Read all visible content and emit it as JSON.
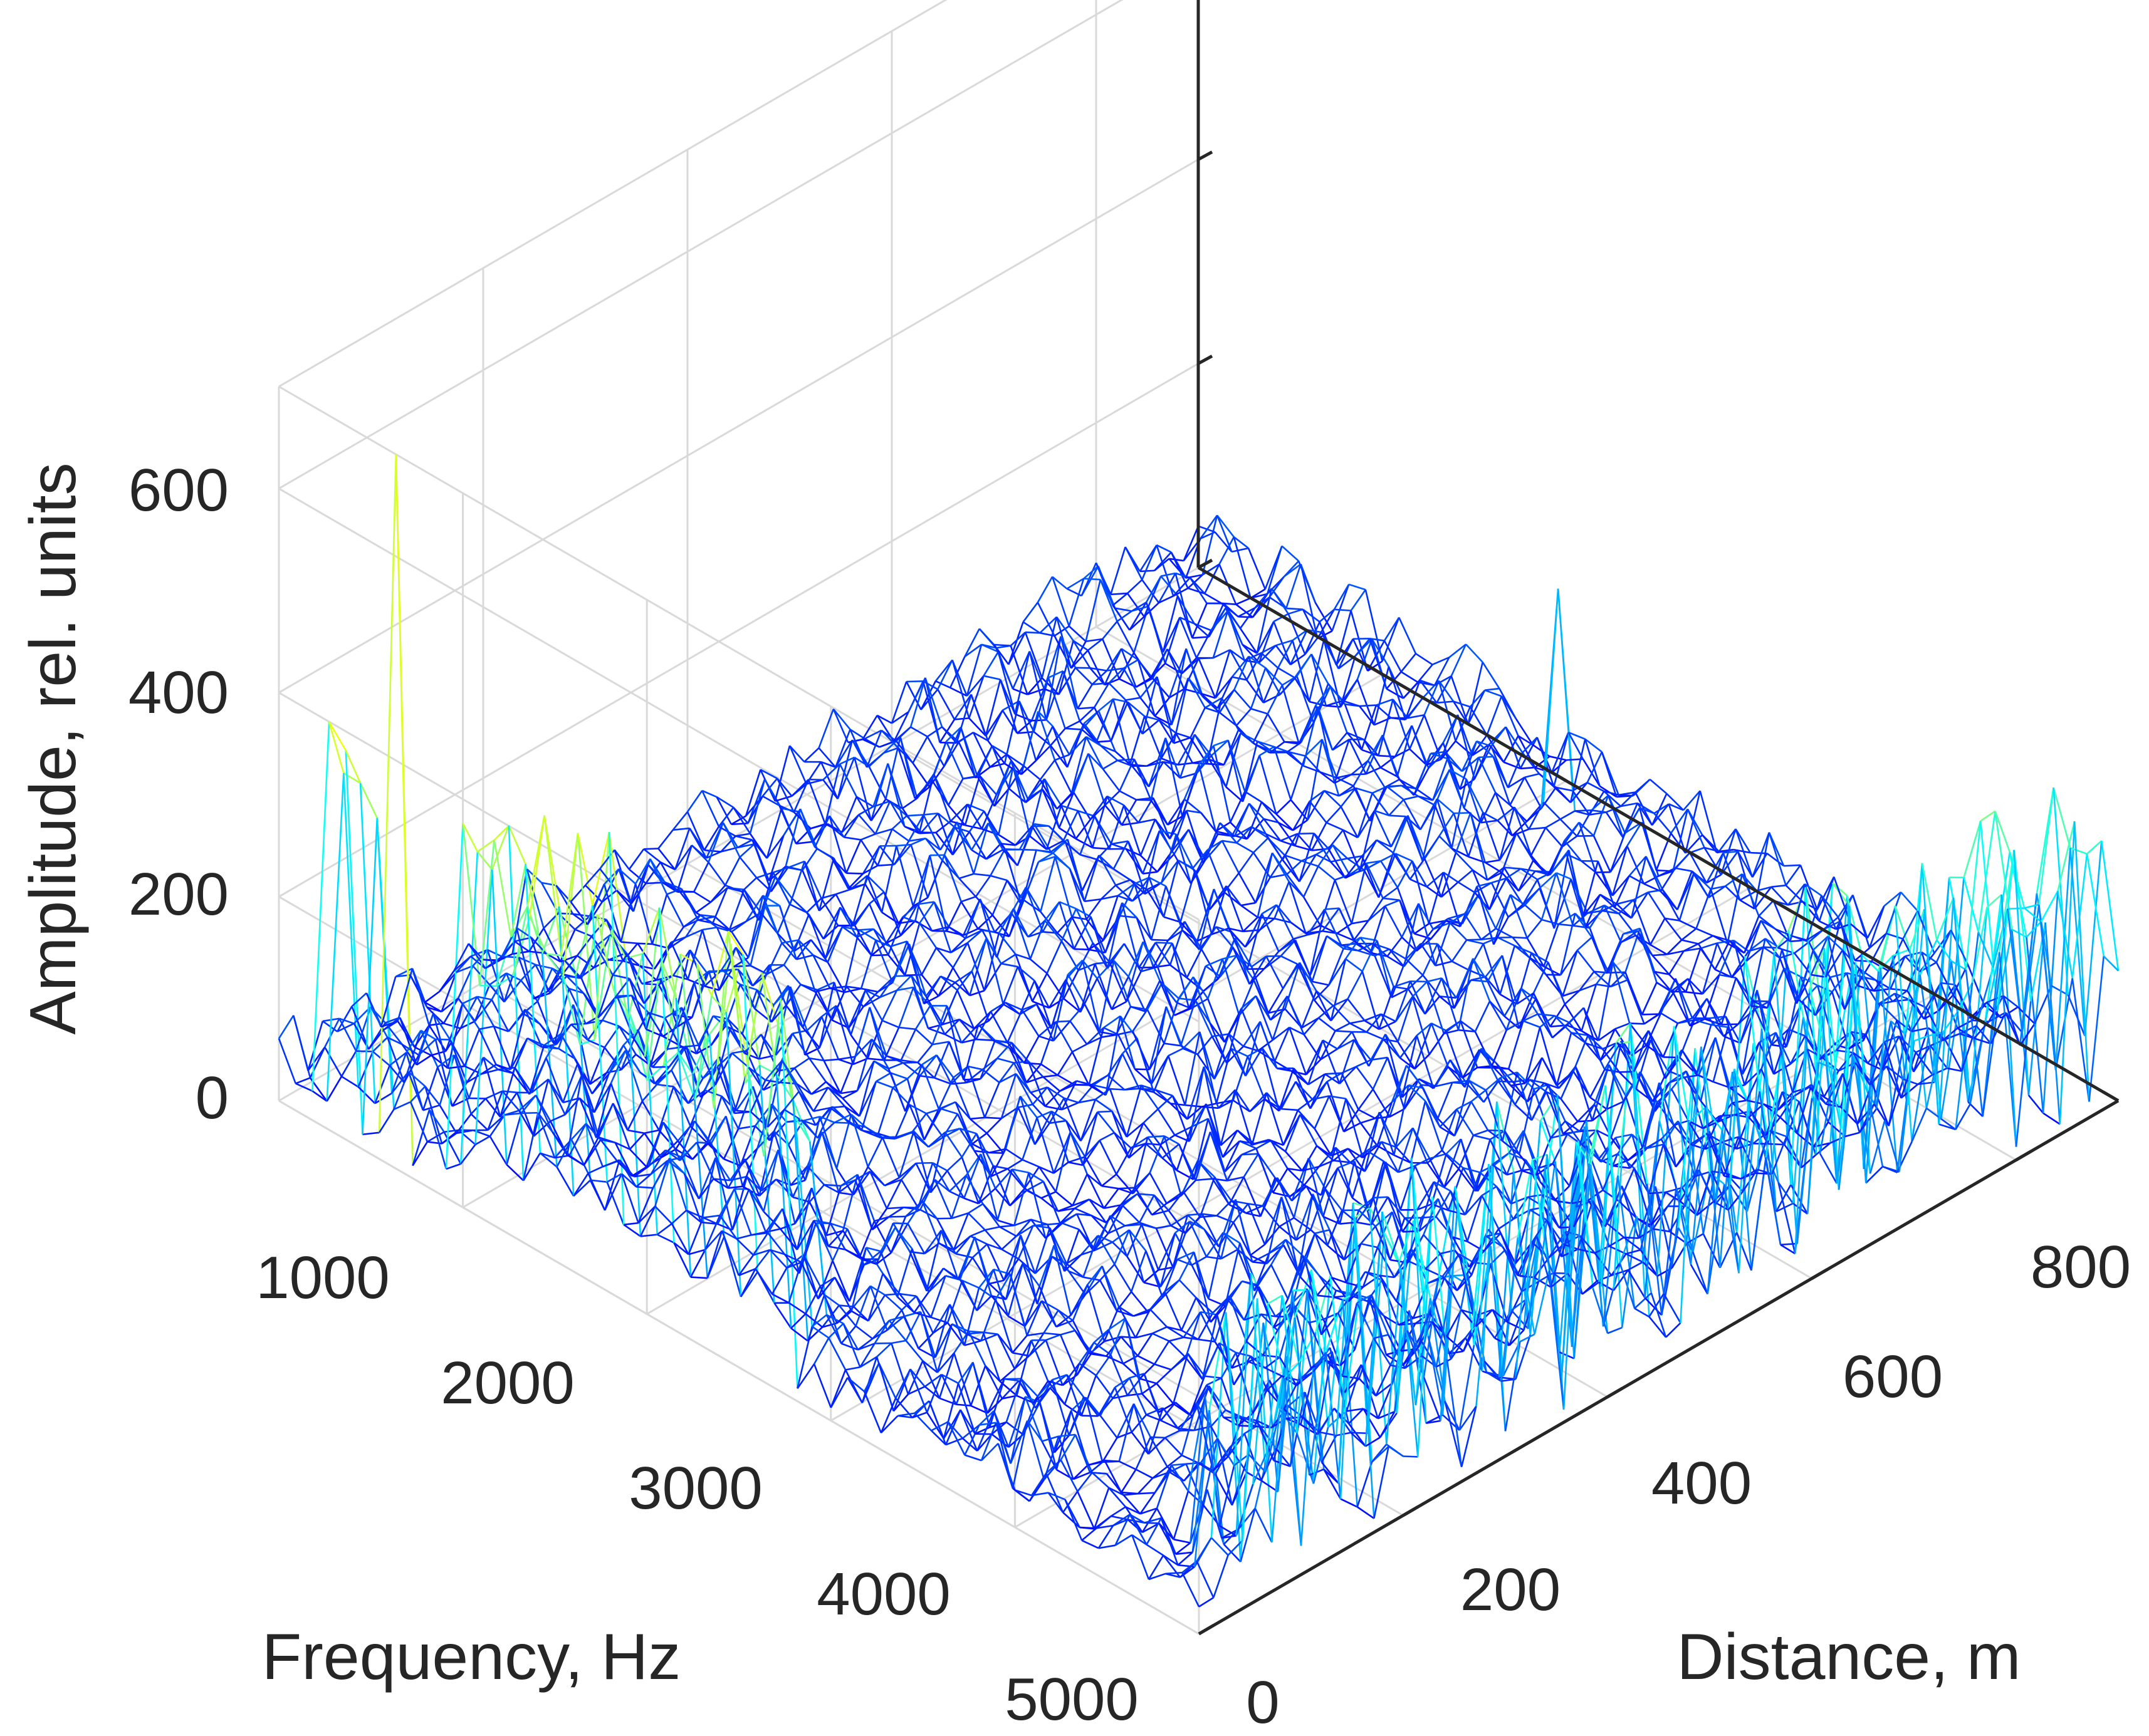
{
  "chart_data": {
    "type": "surface-mesh",
    "colormap": "jet",
    "title": "",
    "xlabel": "Frequency, Hz",
    "ylabel": "Distance, m",
    "zlabel": "Amplitude, rel. units",
    "xlim": [
      0,
      5000
    ],
    "ylim": [
      0,
      900
    ],
    "zlim": [
      0,
      700
    ],
    "xticks": [
      1000,
      2000,
      3000,
      4000,
      5000
    ],
    "yticks": [
      0,
      200,
      400,
      600,
      800
    ],
    "zticks": [
      0,
      200,
      400,
      600
    ],
    "xtick_labels": [
      "1000",
      "2000",
      "3000",
      "4000",
      "5000"
    ],
    "ytick_labels": [
      "0",
      "200",
      "400",
      "600",
      "800"
    ],
    "ztick_labels": [
      "0",
      "200",
      "400",
      "600"
    ],
    "background_amplitude": [
      10,
      90
    ],
    "features": [
      {
        "name": "peak",
        "frequency": 600,
        "distance": 0,
        "amplitude": 700
      },
      {
        "name": "ridge",
        "frequency": [
          1000,
          2700
        ],
        "distance": [
          0,
          30
        ],
        "amplitude": [
          220,
          420
        ]
      },
      {
        "name": "spike-row",
        "frequency": [
          100,
          500
        ],
        "distance": [
          0,
          20
        ],
        "amplitude": [
          300,
          410
        ]
      },
      {
        "name": "spike-row",
        "frequency": [
          4600,
          5000
        ],
        "distance": [
          50,
          900
        ],
        "amplitude": [
          100,
          300
        ]
      },
      {
        "name": "spike",
        "frequency": 4700,
        "distance": 650,
        "amplitude": 330
      },
      {
        "name": "spike",
        "frequency": 2300,
        "distance": 850,
        "amplitude": 250
      }
    ],
    "grid": true
  }
}
